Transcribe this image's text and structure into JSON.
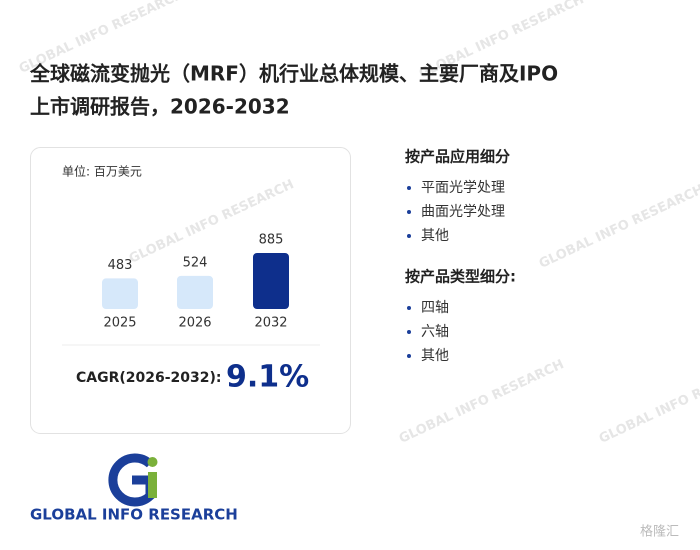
{
  "title_lines": [
    "全球磁流变抛光（MRF）机行业总体规模、主要厂商及IPO",
    "上市调研报告，2026-2032"
  ],
  "chart_data": {
    "type": "bar",
    "unit": "单位: 百万美元",
    "categories": [
      "2025",
      "2026",
      "2032"
    ],
    "values": [
      483,
      524,
      885
    ],
    "colors": [
      "#d6e8fa",
      "#d6e8fa",
      "#0e2f8c"
    ]
  },
  "cagr": {
    "label": "CAGR(2026-2032):",
    "value": "9.1%"
  },
  "segments": [
    {
      "heading": "按产品应用细分",
      "items": [
        "平面光学处理",
        "曲面光学处理",
        "其他"
      ]
    },
    {
      "heading": "按产品类型细分:",
      "items": [
        "四轴",
        "六轴",
        "其他"
      ]
    }
  ],
  "logo": "GLOBAL INFO RESEARCH",
  "watermark": "GLOBAL INFO RESEARCH",
  "corner_mark": "格隆汇"
}
